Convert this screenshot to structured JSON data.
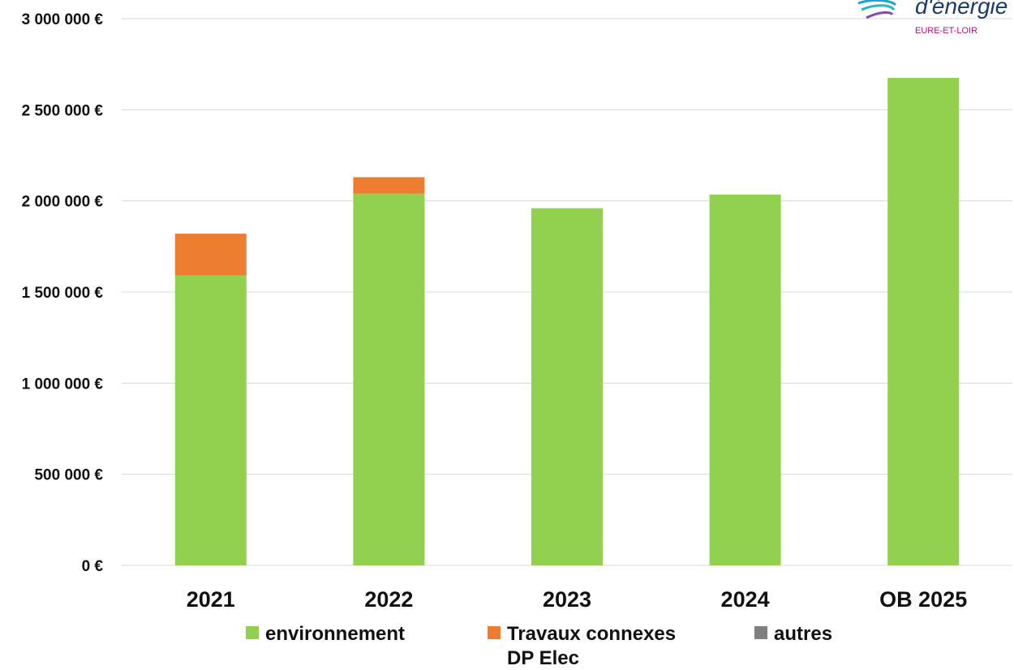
{
  "brand": {
    "text": "d'énergie",
    "subtext": "EURE-ET-LOIR"
  },
  "chart_data": {
    "type": "bar",
    "stacked": true,
    "categories": [
      "2021",
      "2022",
      "2023",
      "2024",
      "OB 2025"
    ],
    "series": [
      {
        "name": "environnement",
        "color": "#92d050",
        "values": [
          1590000,
          2040000,
          1960000,
          2035000,
          2675000
        ]
      },
      {
        "name": "Travaux connexes DP Elec",
        "color": "#ed7d31",
        "values": [
          230000,
          90000,
          0,
          0,
          0
        ]
      },
      {
        "name": "autres",
        "color": "#7f7f7f",
        "values": [
          0,
          0,
          0,
          0,
          0
        ]
      }
    ],
    "y_ticks": [
      "0 €",
      "500 000 €",
      "1 000 000 €",
      "1 500 000 €",
      "2 000 000 €",
      "2 500 000 €",
      "3 000 000 €"
    ],
    "ylim": [
      0,
      3000000
    ],
    "grid": true,
    "legend_position": "bottom",
    "title": "",
    "xlabel": "",
    "ylabel": ""
  }
}
